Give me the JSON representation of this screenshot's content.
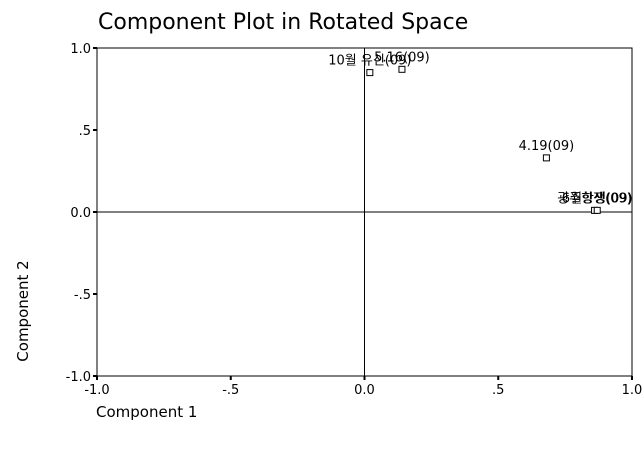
{
  "chart_data": {
    "type": "scatter",
    "title": "Component Plot in Rotated Space",
    "x_label": "Component 1",
    "y_label": "Component 2",
    "labels": [
      "10월 유신(09)",
      "5.16(09)",
      "4.19(09)",
      "광주항쟁(09)",
      "6월항쟁(09)"
    ],
    "x": [
      0.02,
      0.14,
      0.68,
      0.86,
      0.87
    ],
    "values": [
      0.85,
      0.87,
      0.33,
      0.01,
      0.01
    ],
    "color": "#000000",
    "xlim": [
      -1,
      1
    ],
    "ylim": [
      -1,
      1
    ],
    "xticks": [
      {
        "value": -1,
        "label": "-1.0"
      },
      {
        "value": -0.5,
        "label": "-.5"
      },
      {
        "value": 0,
        "label": "0.0"
      },
      {
        "value": 0.5,
        "label": ".5"
      },
      {
        "value": 1,
        "label": "1.0"
      }
    ],
    "yticks": [
      {
        "value": -1,
        "label": "-1.0"
      },
      {
        "value": -0.5,
        "label": "-.5"
      },
      {
        "value": 0,
        "label": "0.0"
      },
      {
        "value": 0.5,
        "label": ".5"
      },
      {
        "value": 1,
        "label": "1.0"
      }
    ],
    "reference_lines": true
  }
}
